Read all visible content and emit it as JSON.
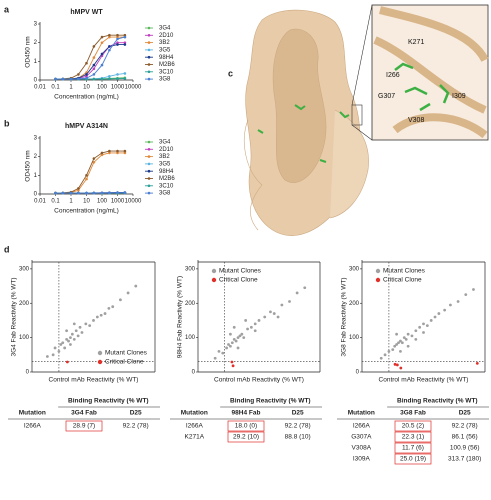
{
  "panel_labels": [
    "a",
    "b",
    "c",
    "d"
  ],
  "structure": {
    "residue_labels": [
      "K271",
      "I266",
      "G307",
      "I309",
      "V308"
    ]
  },
  "chart_data": [
    {
      "type": "line",
      "title": "hMPV WT",
      "xlabel": "Concentration (ng/mL)",
      "ylabel": "OD450 nm",
      "xscale": "log",
      "x": [
        0.1,
        0.3,
        1,
        3,
        10,
        30,
        100,
        300,
        1000,
        3000
      ],
      "xlim": [
        0.01,
        10000
      ],
      "xticks": [
        0.01,
        0.1,
        1,
        10,
        100,
        1000,
        10000
      ],
      "ylim": [
        0,
        3
      ],
      "yticks": [
        0,
        1,
        2,
        3
      ],
      "series": [
        {
          "name": "3G4",
          "color": "#5cb85c",
          "values": [
            0.05,
            0.05,
            0.05,
            0.05,
            0.05,
            0.05,
            0.06,
            0.08,
            0.1,
            0.12
          ]
        },
        {
          "name": "2D10",
          "color": "#c03fbf",
          "values": [
            0.05,
            0.05,
            0.05,
            0.08,
            0.2,
            0.6,
            1.3,
            1.8,
            2.0,
            2.0
          ]
        },
        {
          "name": "3B2",
          "color": "#e08a3c",
          "values": [
            0.05,
            0.05,
            0.06,
            0.1,
            0.4,
            1.2,
            2.0,
            2.3,
            2.3,
            2.3
          ]
        },
        {
          "name": "3G5",
          "color": "#5ab4e0",
          "values": [
            0.05,
            0.05,
            0.05,
            0.05,
            0.05,
            0.06,
            0.1,
            0.2,
            0.3,
            0.35
          ]
        },
        {
          "name": "98H4",
          "color": "#1b3a8c",
          "values": [
            0.05,
            0.05,
            0.06,
            0.1,
            0.3,
            0.8,
            1.4,
            1.8,
            1.9,
            1.9
          ]
        },
        {
          "name": "M2B6",
          "color": "#8b5a2b",
          "values": [
            0.05,
            0.06,
            0.1,
            0.3,
            0.9,
            1.8,
            2.3,
            2.4,
            2.4,
            2.4
          ]
        },
        {
          "name": "3C10",
          "color": "#2aa198",
          "values": [
            0.05,
            0.05,
            0.05,
            0.05,
            0.05,
            0.05,
            0.05,
            0.06,
            0.07,
            0.08
          ]
        },
        {
          "name": "3G8",
          "color": "#4a7fd4",
          "values": [
            0.05,
            0.05,
            0.05,
            0.06,
            0.1,
            0.3,
            0.8,
            1.6,
            2.2,
            2.3
          ]
        }
      ]
    },
    {
      "type": "line",
      "title": "hMPV A314N",
      "xlabel": "Concentration (ng/mL)",
      "ylabel": "OD450 nm",
      "xscale": "log",
      "x": [
        0.1,
        0.3,
        1,
        3,
        10,
        30,
        100,
        300,
        1000,
        3000
      ],
      "xlim": [
        0.01,
        10000
      ],
      "xticks": [
        0.01,
        0.1,
        1,
        10,
        100,
        1000,
        10000
      ],
      "ylim": [
        0,
        3
      ],
      "yticks": [
        0,
        1,
        2,
        3
      ],
      "series": [
        {
          "name": "3G4",
          "color": "#5cb85c",
          "values": [
            0.05,
            0.05,
            0.05,
            0.05,
            0.05,
            0.05,
            0.05,
            0.06,
            0.06,
            0.07
          ]
        },
        {
          "name": "2D10",
          "color": "#c03fbf",
          "values": [
            0.05,
            0.05,
            0.05,
            0.05,
            0.05,
            0.05,
            0.06,
            0.06,
            0.07,
            0.08
          ]
        },
        {
          "name": "3B2",
          "color": "#e08a3c",
          "values": [
            0.05,
            0.05,
            0.08,
            0.2,
            0.8,
            1.7,
            2.1,
            2.2,
            2.2,
            2.2
          ]
        },
        {
          "name": "3G5",
          "color": "#5ab4e0",
          "values": [
            0.05,
            0.05,
            0.05,
            0.05,
            0.05,
            0.05,
            0.05,
            0.05,
            0.06,
            0.06
          ]
        },
        {
          "name": "98H4",
          "color": "#1b3a8c",
          "values": [
            0.05,
            0.05,
            0.05,
            0.05,
            0.05,
            0.06,
            0.06,
            0.07,
            0.08,
            0.08
          ]
        },
        {
          "name": "M2B6",
          "color": "#8b5a2b",
          "values": [
            0.05,
            0.06,
            0.1,
            0.3,
            1.0,
            1.9,
            2.2,
            2.3,
            2.3,
            2.3
          ]
        },
        {
          "name": "3C10",
          "color": "#2aa198",
          "values": [
            0.05,
            0.05,
            0.05,
            0.05,
            0.05,
            0.05,
            0.05,
            0.05,
            0.05,
            0.06
          ]
        },
        {
          "name": "3G8",
          "color": "#4a7fd4",
          "values": [
            0.05,
            0.05,
            0.05,
            0.05,
            0.05,
            0.05,
            0.06,
            0.06,
            0.07,
            0.07
          ]
        }
      ]
    },
    {
      "type": "scatter",
      "xlabel": "Control mAb Reactivity (% WT)",
      "ylabel": "3G4 Fab Reactivity (% WT)",
      "xlim": [
        0,
        320
      ],
      "ylim": [
        0,
        320
      ],
      "yticks": [
        0,
        100,
        200,
        300
      ],
      "reference_lines": {
        "x": 70,
        "y": 30
      },
      "series": [
        {
          "name": "Mutant Clones",
          "color": "#a0a0a0",
          "x": [
            40,
            55,
            60,
            70,
            75,
            80,
            85,
            90,
            95,
            100,
            105,
            110,
            115,
            120,
            125,
            130,
            140,
            150,
            160,
            170,
            180,
            190,
            200,
            210,
            230,
            250,
            270,
            90,
            100,
            110
          ],
          "values": [
            45,
            50,
            70,
            60,
            80,
            85,
            70,
            95,
            90,
            100,
            110,
            95,
            120,
            105,
            130,
            115,
            140,
            135,
            150,
            160,
            165,
            170,
            185,
            190,
            210,
            230,
            250,
            120,
            80,
            140
          ]
        },
        {
          "name": "Critical Clone",
          "color": "#e0302a",
          "x": [
            92
          ],
          "values": [
            29
          ]
        }
      ]
    },
    {
      "type": "scatter",
      "xlabel": "Control mAb Reactivity (% WT)",
      "ylabel": "98H4 Fab Reactivity (% WT)",
      "xlim": [
        0,
        320
      ],
      "ylim": [
        0,
        320
      ],
      "yticks": [
        0,
        100,
        200,
        300
      ],
      "reference_lines": {
        "x": 70,
        "y": 30
      },
      "series": [
        {
          "name": "Mutant Clones",
          "color": "#a0a0a0",
          "x": [
            45,
            55,
            65,
            75,
            80,
            85,
            90,
            95,
            100,
            105,
            110,
            115,
            120,
            130,
            140,
            150,
            160,
            175,
            190,
            200,
            220,
            240,
            260,
            280,
            95,
            105,
            125,
            85,
            150,
            210
          ],
          "values": [
            40,
            60,
            55,
            70,
            80,
            75,
            85,
            95,
            90,
            100,
            105,
            110,
            100,
            125,
            130,
            140,
            150,
            160,
            175,
            170,
            195,
            205,
            230,
            245,
            130,
            70,
            150,
            110,
            120,
            160
          ]
        },
        {
          "name": "Critical Clone",
          "color": "#e0302a",
          "x": [
            92,
            89
          ],
          "values": [
            18,
            29
          ]
        }
      ]
    },
    {
      "type": "scatter",
      "xlabel": "Control mAb Reactivity (% WT)",
      "ylabel": "3G8 Fab Reactivity (% WT)",
      "xlim": [
        0,
        320
      ],
      "ylim": [
        0,
        320
      ],
      "yticks": [
        0,
        100,
        200,
        300
      ],
      "reference_lines": {
        "x": 70,
        "y": 30
      },
      "series": [
        {
          "name": "Mutant Clones",
          "color": "#a0a0a0",
          "x": [
            50,
            60,
            70,
            80,
            85,
            90,
            95,
            100,
            105,
            110,
            115,
            120,
            130,
            140,
            150,
            160,
            170,
            180,
            190,
            200,
            215,
            230,
            250,
            270,
            290,
            100,
            120,
            140,
            90,
            160
          ],
          "values": [
            40,
            50,
            60,
            65,
            75,
            80,
            85,
            90,
            85,
            100,
            95,
            110,
            105,
            120,
            130,
            140,
            135,
            150,
            160,
            170,
            180,
            195,
            205,
            225,
            240,
            60,
            75,
            95,
            110,
            115
          ]
        },
        {
          "name": "Critical Clone",
          "color": "#e0302a",
          "x": [
            92,
            86,
            101,
            300
          ],
          "values": [
            20.5,
            22.3,
            11.7,
            25
          ]
        }
      ]
    }
  ],
  "tables": [
    {
      "title": "Binding Reactivity (% WT)",
      "columns": [
        "Mutation",
        "3G4 Fab",
        "D25"
      ],
      "rows": [
        [
          "I266A",
          "28.9 (7)",
          "92.2 (78)"
        ]
      ]
    },
    {
      "title": "Binding Reactivity (% WT)",
      "columns": [
        "Mutation",
        "98H4 Fab",
        "D25"
      ],
      "rows": [
        [
          "I266A",
          "18.0 (0)",
          "92.2 (78)"
        ],
        [
          "K271A",
          "29.2 (10)",
          "88.8 (10)"
        ]
      ]
    },
    {
      "title": "Binding Reactivity (% WT)",
      "columns": [
        "Mutation",
        "3G8 Fab",
        "D25"
      ],
      "rows": [
        [
          "I266A",
          "20.5 (2)",
          "92.2 (78)"
        ],
        [
          "G307A",
          "22.3 (1)",
          "86.1 (56)"
        ],
        [
          "V308A",
          "11.7 (6)",
          "100.9 (56)"
        ],
        [
          "I309A",
          "25.0 (19)",
          "313.7 (180)"
        ]
      ]
    }
  ]
}
